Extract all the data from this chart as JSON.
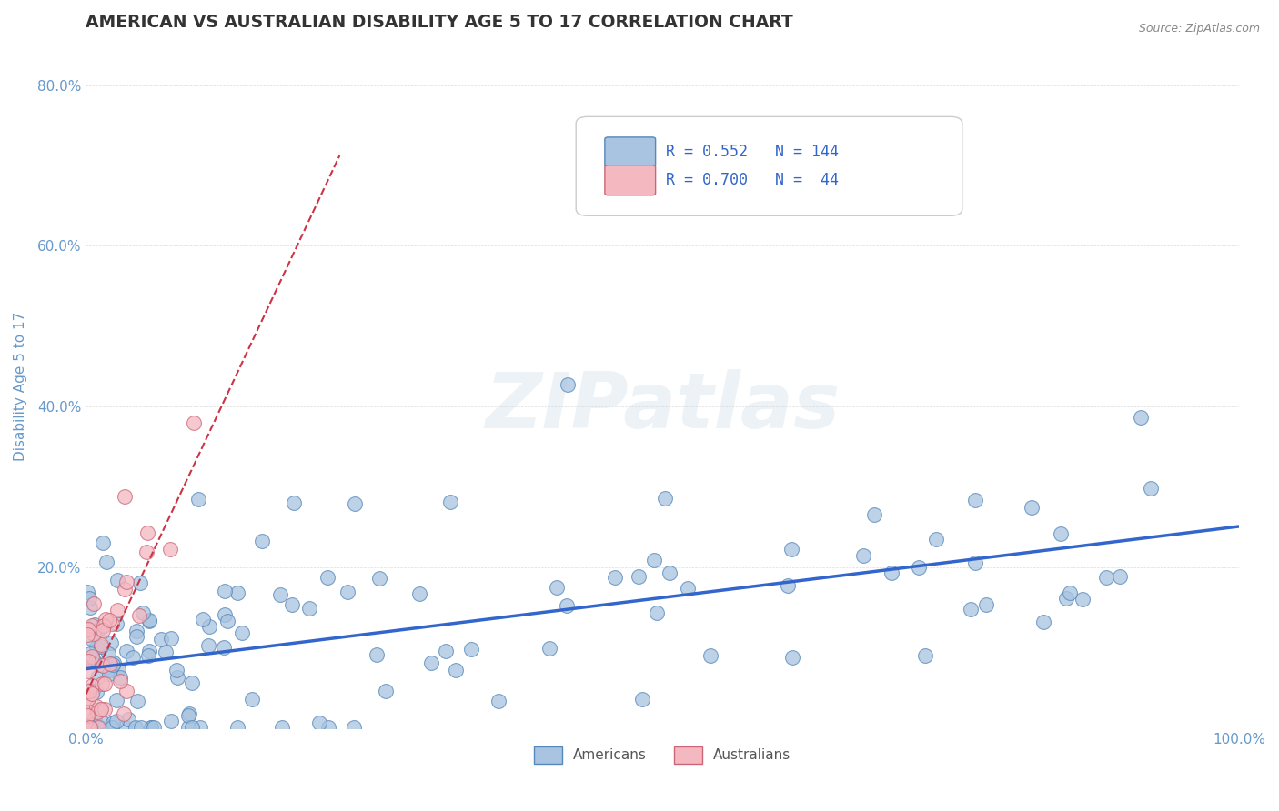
{
  "title": "AMERICAN VS AUSTRALIAN DISABILITY AGE 5 TO 17 CORRELATION CHART",
  "source": "Source: ZipAtlas.com",
  "ylabel": "Disability Age 5 to 17",
  "xlim": [
    0,
    1.0
  ],
  "ylim": [
    0,
    0.85
  ],
  "yticks": [
    0.0,
    0.2,
    0.4,
    0.6,
    0.8
  ],
  "yticklabels": [
    "",
    "20.0%",
    "40.0%",
    "60.0%",
    "80.0%"
  ],
  "american_color": "#a8c4e0",
  "american_edge": "#5588bb",
  "australian_color": "#f4b8c1",
  "australian_edge": "#cc6677",
  "trendline_american_color": "#3366cc",
  "trendline_australian_color": "#cc3344",
  "watermark": "ZIPatlas",
  "legend_R_american": "0.552",
  "legend_N_american": "144",
  "legend_R_australian": "0.700",
  "legend_N_australian": " 44",
  "american_seed": 42,
  "australian_seed": 99,
  "N_american": 144,
  "N_australian": 44,
  "R_american": 0.552,
  "R_australian": 0.7,
  "background_color": "#ffffff",
  "grid_color": "#cccccc",
  "title_color": "#333333",
  "axis_label_color": "#6699cc",
  "tick_color": "#6699cc"
}
